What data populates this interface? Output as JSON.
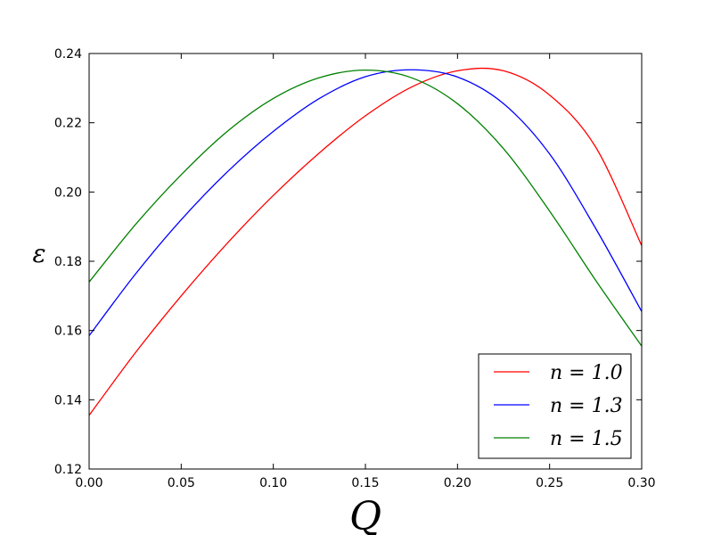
{
  "chart_data": {
    "type": "line",
    "xlabel": "Q",
    "ylabel": "ε",
    "xlim": [
      0.0,
      0.3
    ],
    "ylim": [
      0.12,
      0.24
    ],
    "x_ticks": [
      "0.00",
      "0.05",
      "0.10",
      "0.15",
      "0.20",
      "0.25",
      "0.30"
    ],
    "y_ticks": [
      "0.12",
      "0.14",
      "0.16",
      "0.18",
      "0.20",
      "0.22",
      "0.24"
    ],
    "grid": false,
    "legend_position": "bottom-right",
    "x": [
      0.0,
      0.025,
      0.05,
      0.075,
      0.1,
      0.125,
      0.15,
      0.175,
      0.2,
      0.225,
      0.25,
      0.275,
      0.3
    ],
    "series": [
      {
        "name": "n = 1.0",
        "color": "#ff0000",
        "values": [
          0.1355,
          0.1535,
          0.17,
          0.1852,
          0.199,
          0.2113,
          0.222,
          0.2303,
          0.235,
          0.235,
          0.228,
          0.213,
          0.1845
        ]
      },
      {
        "name": "n = 1.3",
        "color": "#0000ff",
        "values": [
          0.1585,
          0.1762,
          0.192,
          0.2058,
          0.2175,
          0.227,
          0.2333,
          0.2353,
          0.2332,
          0.2255,
          0.211,
          0.1895,
          0.1655
        ]
      },
      {
        "name": "n = 1.5",
        "color": "#008000",
        "values": [
          0.174,
          0.1905,
          0.205,
          0.2175,
          0.227,
          0.233,
          0.2352,
          0.233,
          0.2255,
          0.2125,
          0.1945,
          0.1745,
          0.1555
        ]
      }
    ]
  }
}
